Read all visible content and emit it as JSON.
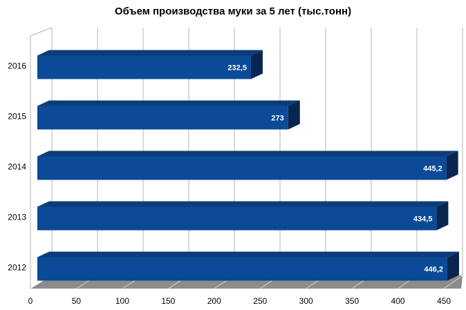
{
  "chart_data": {
    "type": "bar",
    "orientation": "horizontal",
    "title": "Объем производства муки за 5 лет (тыс.тонн)",
    "xlabel": "",
    "ylabel": "",
    "categories": [
      "2016",
      "2015",
      "2014",
      "2013",
      "2012"
    ],
    "values": [
      232.5,
      273,
      445.2,
      434.5,
      446.2
    ],
    "value_labels": [
      "232,5",
      "273",
      "445,2",
      "434,5",
      "446,2"
    ],
    "xlim": [
      0,
      450
    ],
    "x_ticks": [
      0,
      50,
      100,
      150,
      200,
      250,
      300,
      350,
      400,
      450
    ],
    "grid": true,
    "legend": "none",
    "colors": {
      "bar_front": "#0a4a96",
      "bar_top": "#0e3c78",
      "bar_side": "#08264f",
      "floor": "#8c8c8c",
      "grid": "#b4b4b4",
      "value_label": "#ffffff"
    }
  }
}
